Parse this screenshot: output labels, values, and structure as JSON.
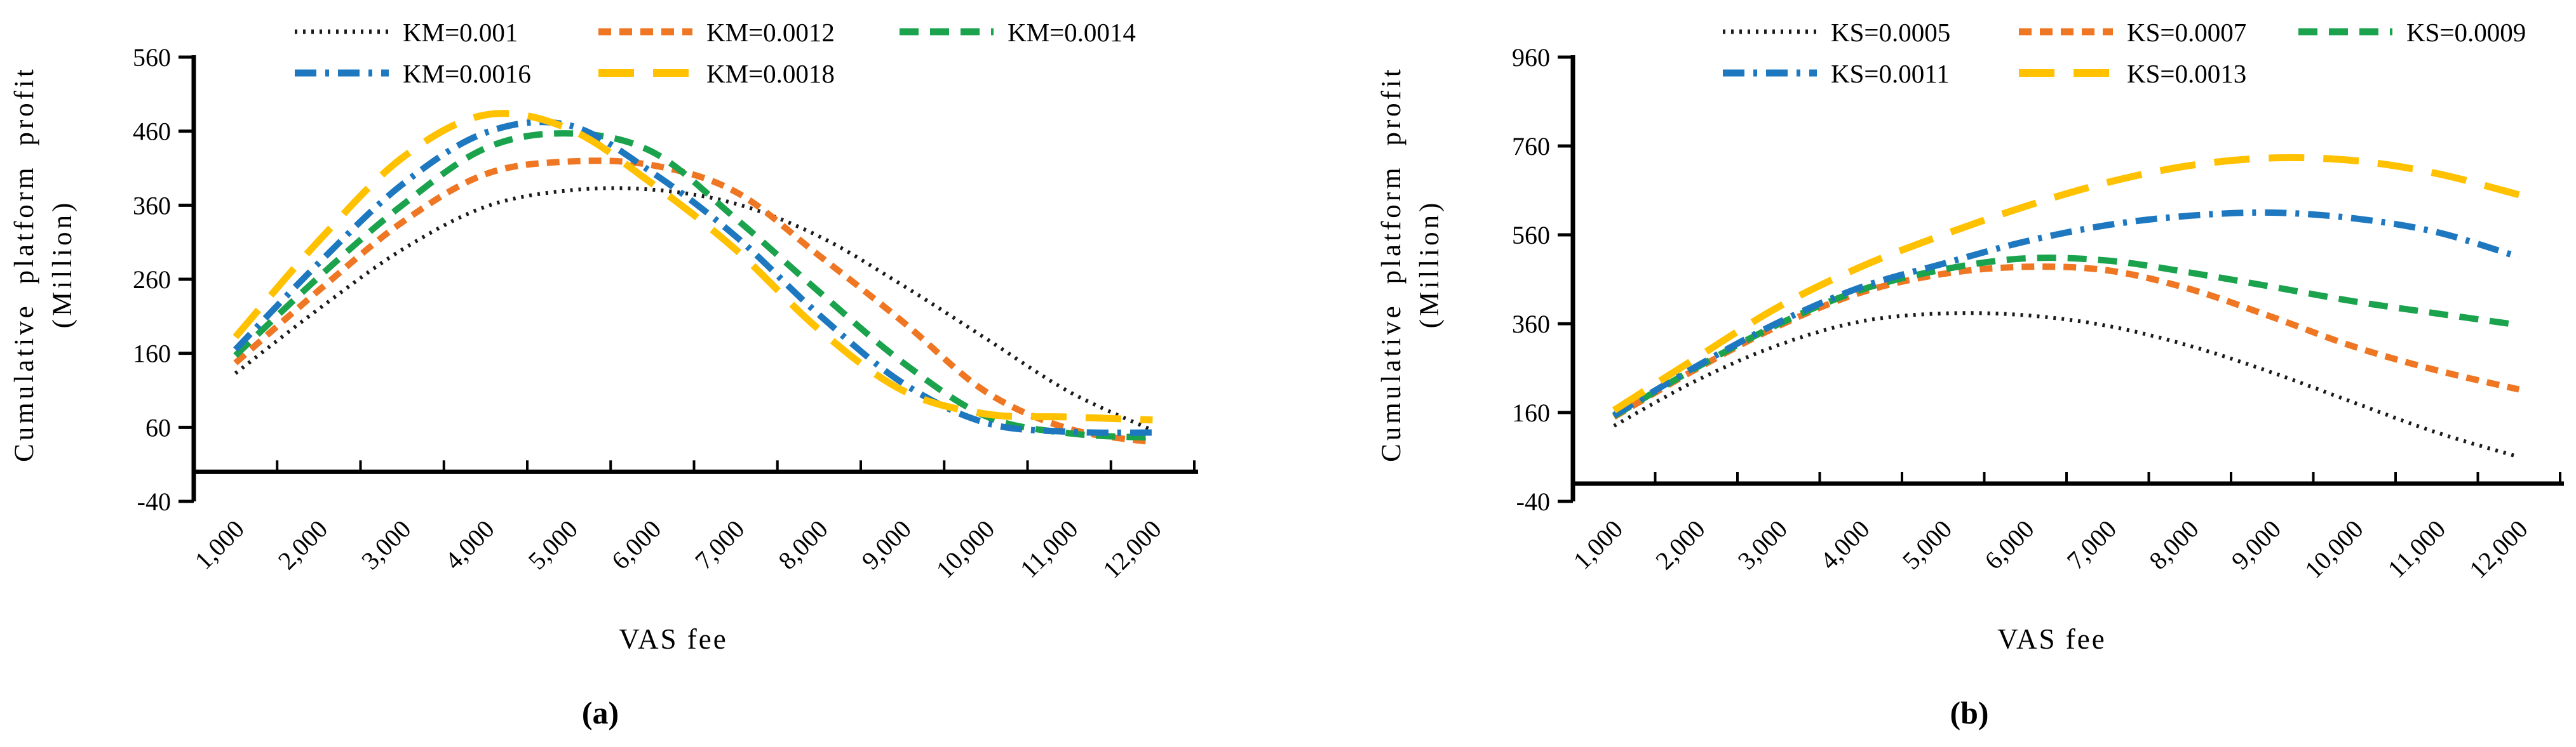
{
  "figure": {
    "background": "#ffffff",
    "axis_color": "#000000"
  },
  "chart_data": [
    {
      "type": "line",
      "panel": "a",
      "caption": "(a)",
      "xlabel": "VAS fee",
      "ylabel_lines": [
        "Cumulative platform profit",
        "(Million)"
      ],
      "x": [
        1000,
        2000,
        3000,
        4000,
        5000,
        6000,
        7000,
        8000,
        9000,
        10000,
        11000,
        12000
      ],
      "x_tick_labels": [
        "1,000",
        "2,000",
        "3,000",
        "4,000",
        "5,000",
        "6,000",
        "7,000",
        "8,000",
        "9,000",
        "10,000",
        "11,000",
        "12,000"
      ],
      "ylim": [
        -40,
        560
      ],
      "yticks": [
        -40,
        60,
        160,
        260,
        360,
        460,
        560
      ],
      "grid": false,
      "legend_position": "top",
      "legend_rows": [
        [
          0,
          1,
          2
        ],
        [
          3,
          4
        ]
      ],
      "series": [
        {
          "name": "KM=0.001",
          "color": "#1a1a1a",
          "style": "dot",
          "values": [
            133,
            220,
            300,
            358,
            380,
            381,
            362,
            318,
            252,
            180,
            108,
            56
          ]
        },
        {
          "name": "KM=0.0012",
          "color": "#EF7622",
          "style": "dash_s",
          "values": [
            147,
            245,
            337,
            402,
            419,
            414,
            378,
            292,
            203,
            108,
            58,
            40
          ]
        },
        {
          "name": "KM=0.0014",
          "color": "#1AA34C",
          "style": "dash_m",
          "values": [
            157,
            263,
            360,
            437,
            457,
            432,
            342,
            243,
            148,
            75,
            52,
            46
          ]
        },
        {
          "name": "KM=0.0016",
          "color": "#1E78C0",
          "style": "dash_dot",
          "values": [
            165,
            282,
            388,
            458,
            468,
            404,
            318,
            212,
            120,
            66,
            54,
            53
          ]
        },
        {
          "name": "KM=0.0018",
          "color": "#FFC100",
          "style": "dash_l",
          "values": [
            182,
            312,
            424,
            482,
            463,
            389,
            300,
            192,
            110,
            78,
            74,
            70
          ]
        }
      ]
    },
    {
      "type": "line",
      "panel": "b",
      "caption": "(b)",
      "xlabel": "VAS fee",
      "ylabel_lines": [
        "Cumulative platform profit",
        "(Million)"
      ],
      "x": [
        1000,
        2000,
        3000,
        4000,
        5000,
        6000,
        7000,
        8000,
        9000,
        10000,
        11000,
        12000
      ],
      "x_tick_labels": [
        "1,000",
        "2,000",
        "3,000",
        "4,000",
        "5,000",
        "6,000",
        "7,000",
        "8,000",
        "9,000",
        "10,000",
        "11,000",
        "12,000"
      ],
      "ylim": [
        -40,
        960
      ],
      "yticks": [
        -40,
        160,
        360,
        560,
        760,
        960
      ],
      "grid": false,
      "legend_position": "top",
      "legend_rows": [
        [
          0,
          1,
          2
        ],
        [
          3,
          4
        ]
      ],
      "series": [
        {
          "name": "KS=0.0005",
          "color": "#1a1a1a",
          "style": "dot",
          "values": [
            130,
            232,
            312,
            365,
            383,
            379,
            355,
            310,
            250,
            182,
            115,
            60
          ]
        },
        {
          "name": "KS=0.0007",
          "color": "#EF7622",
          "style": "dash_s",
          "values": [
            150,
            258,
            355,
            430,
            472,
            488,
            480,
            438,
            375,
            308,
            255,
            212
          ]
        },
        {
          "name": "KS=0.0009",
          "color": "#1AA34C",
          "style": "dash_m",
          "values": [
            152,
            261,
            359,
            436,
            482,
            507,
            502,
            475,
            443,
            410,
            383,
            357
          ]
        },
        {
          "name": "KS=0.0011",
          "color": "#1E78C0",
          "style": "dash_dot",
          "values": [
            154,
            264,
            363,
            442,
            495,
            545,
            582,
            603,
            610,
            597,
            566,
            510
          ]
        },
        {
          "name": "KS=0.0013",
          "color": "#FFC100",
          "style": "dash_l",
          "values": [
            165,
            283,
            398,
            488,
            560,
            624,
            678,
            716,
            733,
            727,
            698,
            650
          ]
        }
      ]
    }
  ]
}
